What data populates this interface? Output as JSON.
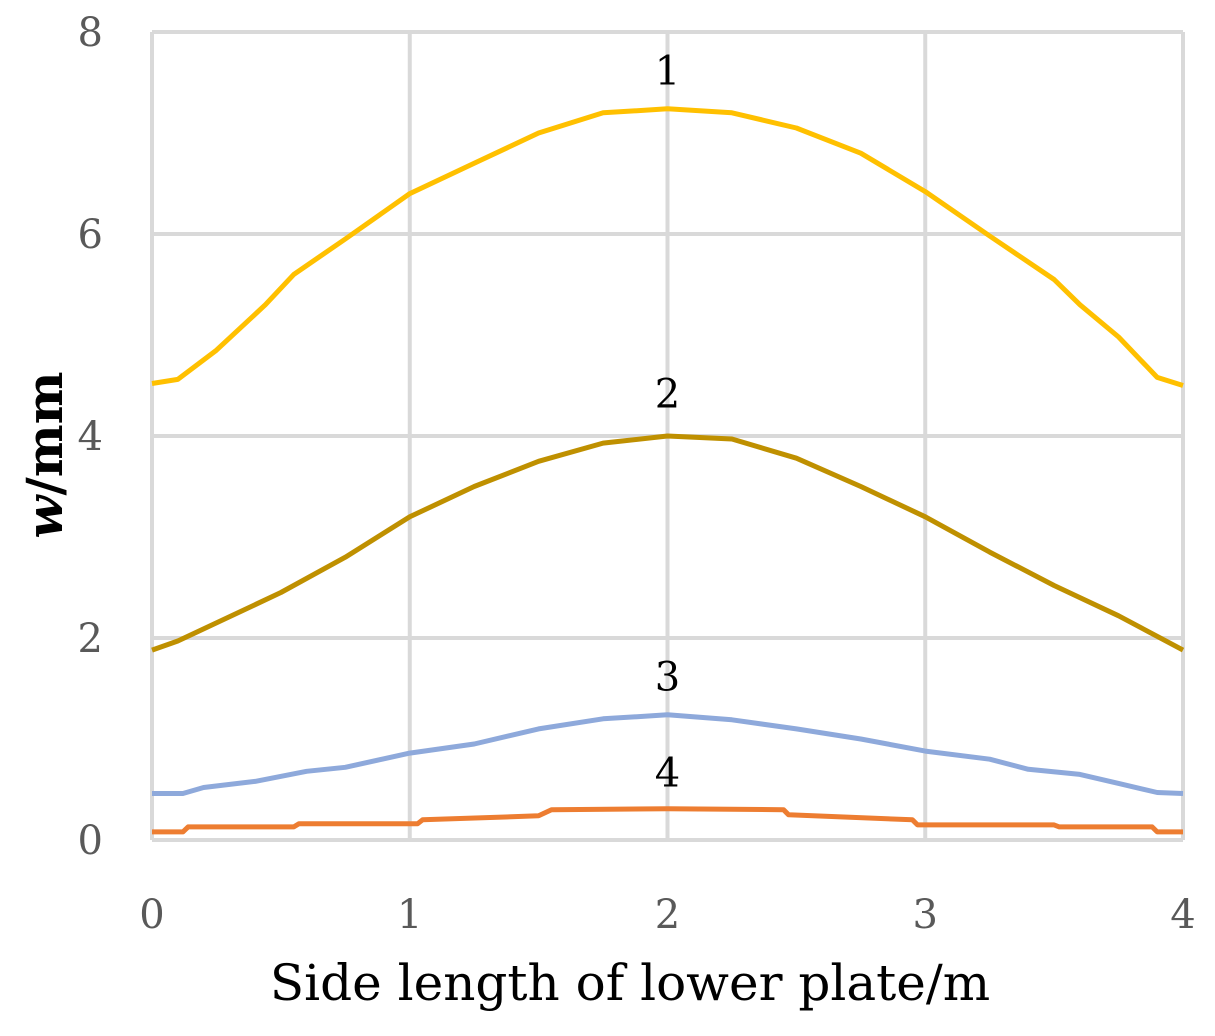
{
  "chart_data": {
    "type": "line",
    "title": "",
    "xlabel": "Side length of lower plate/m",
    "ylabel_italic": "w",
    "ylabel_rest": "/mm",
    "xlim": [
      0,
      4
    ],
    "ylim": [
      0,
      8
    ],
    "xticks": [
      "0",
      "1",
      "2",
      "3",
      "4"
    ],
    "yticks": [
      "0",
      "2",
      "4",
      "6",
      "8"
    ],
    "grid": true,
    "legend": "none",
    "series": [
      {
        "label": "1",
        "color": "#FFC000",
        "x": [
          0,
          0.1,
          0.25,
          0.44,
          0.55,
          0.75,
          1.0,
          1.25,
          1.5,
          1.75,
          2.0,
          2.25,
          2.5,
          2.75,
          3.0,
          3.25,
          3.5,
          3.6,
          3.75,
          3.9,
          4.0
        ],
        "y": [
          4.52,
          4.56,
          4.85,
          5.3,
          5.6,
          5.95,
          6.4,
          6.7,
          7.0,
          7.2,
          7.24,
          7.2,
          7.05,
          6.8,
          6.42,
          5.98,
          5.55,
          5.3,
          4.98,
          4.58,
          4.5
        ]
      },
      {
        "label": "2",
        "color": "#BF9000",
        "x": [
          0,
          0.1,
          0.25,
          0.5,
          0.75,
          1.0,
          1.25,
          1.5,
          1.75,
          2.0,
          2.25,
          2.5,
          2.75,
          3.0,
          3.25,
          3.5,
          3.75,
          4.0
        ],
        "y": [
          1.88,
          1.97,
          2.15,
          2.45,
          2.8,
          3.2,
          3.5,
          3.75,
          3.93,
          4.0,
          3.97,
          3.78,
          3.5,
          3.2,
          2.85,
          2.52,
          2.22,
          1.88
        ]
      },
      {
        "label": "3",
        "color": "#8EA9DB",
        "x": [
          0,
          0.12,
          0.2,
          0.4,
          0.6,
          0.75,
          1.0,
          1.25,
          1.5,
          1.75,
          2.0,
          2.25,
          2.5,
          2.75,
          3.0,
          3.25,
          3.4,
          3.6,
          3.75,
          3.9,
          4.0
        ],
        "y": [
          0.46,
          0.46,
          0.52,
          0.58,
          0.68,
          0.72,
          0.86,
          0.95,
          1.1,
          1.2,
          1.24,
          1.19,
          1.1,
          1.0,
          0.88,
          0.8,
          0.7,
          0.65,
          0.56,
          0.47,
          0.46
        ]
      },
      {
        "label": "4",
        "color": "#ED7D31",
        "x": [
          0,
          0.12,
          0.14,
          0.55,
          0.57,
          1.03,
          1.05,
          1.5,
          1.55,
          2.0,
          2.45,
          2.47,
          2.95,
          2.97,
          3.5,
          3.52,
          3.88,
          3.9,
          4.0
        ],
        "y": [
          0.08,
          0.08,
          0.13,
          0.13,
          0.16,
          0.16,
          0.2,
          0.24,
          0.3,
          0.31,
          0.3,
          0.25,
          0.2,
          0.15,
          0.15,
          0.13,
          0.13,
          0.08,
          0.08
        ]
      }
    ],
    "annotations": [
      {
        "text": "1",
        "x": 2.0,
        "y": 7.6
      },
      {
        "text": "2",
        "x": 2.0,
        "y": 4.4
      },
      {
        "text": "3",
        "x": 2.0,
        "y": 1.6
      },
      {
        "text": "4",
        "x": 2.0,
        "y": 0.65
      }
    ]
  }
}
